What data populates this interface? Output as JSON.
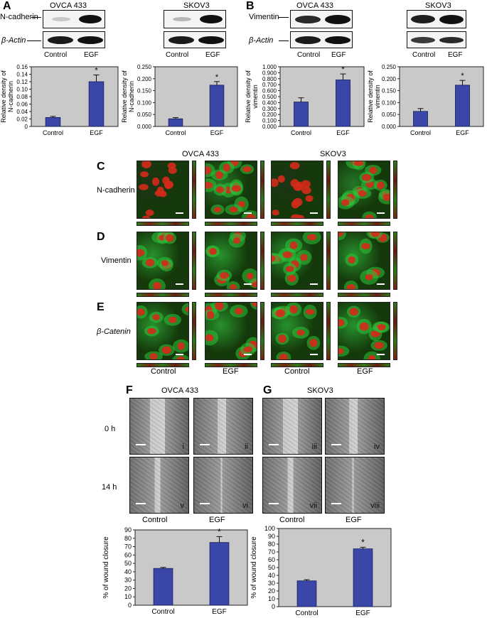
{
  "panels": {
    "A": {
      "label": "A",
      "lines": [
        "OVCA 433",
        "SKOV3"
      ],
      "blot_rows": [
        "N-cadherin",
        "β-Actin"
      ],
      "conditions": [
        "Control",
        "EGF"
      ]
    },
    "B": {
      "label": "B",
      "lines": [
        "OVCA 433",
        "SKOV3"
      ],
      "blot_rows": [
        "Vimentin",
        "β-Actin"
      ],
      "conditions": [
        "Control",
        "EGF"
      ]
    },
    "C": {
      "label": "C",
      "row": "N-cadherin"
    },
    "D": {
      "label": "D",
      "row": "Vimentin"
    },
    "E": {
      "label": "E",
      "row": "β-Catenin"
    },
    "CDE_headers": {
      "lines": [
        "OVCA 433",
        "SKOV3"
      ],
      "conditions": [
        "Control",
        "EGF",
        "Control",
        "EGF"
      ]
    },
    "F": {
      "label": "F",
      "line": "OVCA 433",
      "roman": [
        "i",
        "ii",
        "v",
        "vi"
      ]
    },
    "G": {
      "label": "G",
      "line": "SKOV3",
      "roman": [
        "iii",
        "iv",
        "vii",
        "viii"
      ]
    },
    "FG": {
      "times": [
        "0 h",
        "14 h"
      ],
      "conditions": [
        "Control",
        "EGF"
      ]
    }
  },
  "chart_data": [
    {
      "id": "A-OVCA433",
      "type": "bar",
      "categories": [
        "Control",
        "EGF"
      ],
      "values": [
        0.024,
        0.12
      ],
      "errors": [
        0.003,
        0.018
      ],
      "significance": [
        "",
        "*"
      ],
      "ylabel": "Relative density of N-cadherin",
      "ylim": [
        0,
        0.16
      ],
      "yticks": [
        "0",
        "0.02",
        "0.04",
        "0.06",
        "0.08",
        "0.10",
        "0.12",
        "0.14",
        "0.16"
      ],
      "bar_color": "#3a46a8",
      "bg_color": "#c9c9c9"
    },
    {
      "id": "A-SKOV3",
      "type": "bar",
      "categories": [
        "Control",
        "EGF"
      ],
      "values": [
        0.032,
        0.173
      ],
      "errors": [
        0.005,
        0.015
      ],
      "significance": [
        "",
        "*"
      ],
      "ylabel": "Relative density of N-cadherin",
      "ylim": [
        0,
        0.25
      ],
      "yticks": [
        "0.000",
        "0.050",
        "0.100",
        "0.150",
        "0.200",
        "0.250"
      ],
      "bar_color": "#3a46a8",
      "bg_color": "#c9c9c9"
    },
    {
      "id": "B-OVCA433",
      "type": "bar",
      "categories": [
        "Control",
        "EGF"
      ],
      "values": [
        0.41,
        0.78
      ],
      "errors": [
        0.07,
        0.1
      ],
      "significance": [
        "",
        "*"
      ],
      "ylabel": "Relative density of vimentin",
      "ylim": [
        0,
        1.0
      ],
      "yticks": [
        "0.000",
        "0.100",
        "0.200",
        "0.300",
        "0.400",
        "0.500",
        "0.600",
        "0.700",
        "0.800",
        "0.900",
        "1.000"
      ],
      "bar_color": "#3a46a8",
      "bg_color": "#c9c9c9"
    },
    {
      "id": "B-SKOV3",
      "type": "bar",
      "categories": [
        "Control",
        "EGF"
      ],
      "values": [
        0.063,
        0.173
      ],
      "errors": [
        0.012,
        0.02
      ],
      "significance": [
        "",
        "*"
      ],
      "ylabel": "Relative density of vimentin",
      "ylim": [
        0,
        0.25
      ],
      "yticks": [
        "0.000",
        "0.050",
        "0.100",
        "0.150",
        "0.200",
        "0.250"
      ],
      "bar_color": "#3a46a8",
      "bg_color": "#c9c9c9"
    },
    {
      "id": "F-OVCA433",
      "type": "bar",
      "categories": [
        "Control",
        "EGF"
      ],
      "values": [
        44,
        75
      ],
      "errors": [
        1.2,
        7
      ],
      "significance": [
        "",
        "*"
      ],
      "ylabel": "% of wound closure",
      "ylim": [
        0,
        90
      ],
      "yticks": [
        "0",
        "10",
        "20",
        "30",
        "40",
        "50",
        "60",
        "70",
        "80",
        "90"
      ],
      "bar_color": "#3a46a8",
      "bg_color": "#c9c9c9"
    },
    {
      "id": "G-SKOV3",
      "type": "bar",
      "categories": [
        "Control",
        "EGF"
      ],
      "values": [
        33,
        74
      ],
      "errors": [
        1.5,
        2
      ],
      "significance": [
        "",
        "*"
      ],
      "ylabel": "% of wound closure",
      "ylim": [
        0,
        100
      ],
      "yticks": [
        "0",
        "10",
        "20",
        "30",
        "40",
        "50",
        "60",
        "70",
        "80",
        "90",
        "100"
      ],
      "bar_color": "#3a46a8",
      "bg_color": "#c9c9c9"
    }
  ],
  "colors": {
    "nuclei": "#d42a1a",
    "stain": "#2ec43a",
    "background": "#1a1a10"
  }
}
